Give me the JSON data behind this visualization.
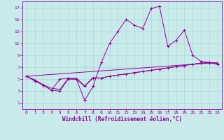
{
  "bg_color": "#c8eaea",
  "line_color": "#990099",
  "xlabel": "Windchill (Refroidissement éolien,°C)",
  "xlim": [
    -0.5,
    23.5
  ],
  "ylim": [
    0,
    18
  ],
  "xticks": [
    0,
    1,
    2,
    3,
    4,
    5,
    6,
    7,
    8,
    9,
    10,
    11,
    12,
    13,
    14,
    15,
    16,
    17,
    18,
    19,
    20,
    21,
    22,
    23
  ],
  "yticks": [
    1,
    3,
    5,
    7,
    9,
    11,
    13,
    15,
    17
  ],
  "line1_x": [
    0,
    1,
    2,
    3,
    4,
    5,
    6,
    7,
    8,
    9,
    10,
    11,
    12,
    13,
    14,
    15,
    16,
    17,
    18,
    19,
    20,
    21,
    22,
    23
  ],
  "line1_y": [
    5.5,
    4.7,
    4.0,
    3.2,
    5.0,
    5.2,
    5.0,
    1.5,
    3.8,
    7.8,
    11.0,
    13.0,
    15.0,
    14.0,
    13.5,
    16.8,
    17.2,
    10.5,
    11.5,
    13.2,
    9.0,
    8.0,
    7.8,
    7.5
  ],
  "line2_x": [
    0,
    1,
    2,
    3,
    4,
    5,
    6,
    7,
    8,
    9,
    10,
    11,
    12,
    13,
    14,
    15,
    16,
    17,
    18,
    19,
    20,
    21,
    22,
    23
  ],
  "line2_y": [
    5.5,
    4.8,
    4.0,
    3.2,
    3.0,
    5.0,
    5.0,
    3.8,
    5.2,
    5.2,
    5.5,
    5.7,
    5.9,
    6.1,
    6.3,
    6.5,
    6.7,
    6.9,
    7.1,
    7.3,
    7.5,
    7.7,
    7.7,
    7.6
  ],
  "line3_x": [
    0,
    23
  ],
  "line3_y": [
    5.5,
    7.8
  ],
  "line4_x": [
    0,
    1,
    2,
    3,
    4,
    5,
    6,
    7,
    8,
    9,
    10,
    11,
    12,
    13,
    14,
    15,
    16,
    17,
    18,
    19,
    20,
    21,
    22,
    23
  ],
  "line4_y": [
    5.5,
    4.9,
    4.1,
    3.5,
    3.3,
    5.1,
    5.2,
    3.9,
    5.3,
    5.2,
    5.5,
    5.7,
    5.9,
    6.1,
    6.3,
    6.5,
    6.7,
    6.9,
    7.1,
    7.3,
    7.5,
    7.7,
    7.8,
    7.7
  ],
  "grid_color": "#aad8d8",
  "tick_fontsize": 4.5,
  "xlabel_fontsize": 5.5
}
